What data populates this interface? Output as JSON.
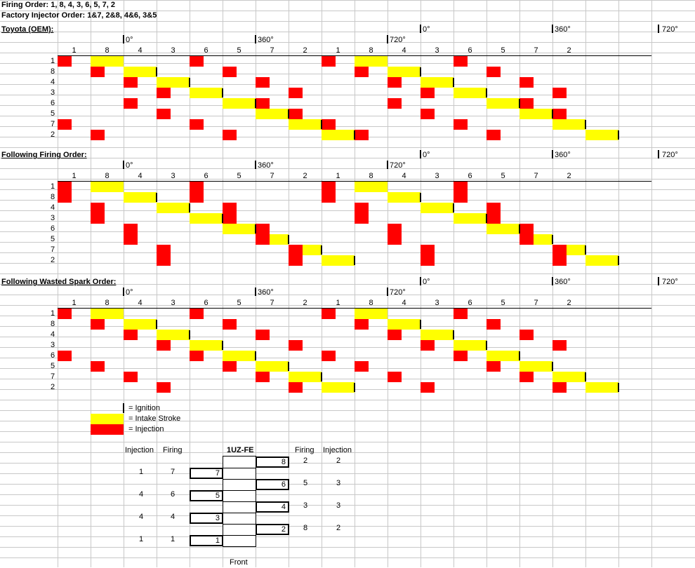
{
  "header": {
    "firing_order": "Firing Order: 1, 8, 4, 3, 6, 5, 7, 2",
    "injector_order": "Factory Injector Order: 1&7, 2&8, 4&6, 3&5"
  },
  "colors": {
    "ignition": "#000000",
    "intake": "#ffff00",
    "injection": "#ff0000",
    "grid": "#c8c8c8"
  },
  "degree_labels": {
    "zero": "0°",
    "d360": "360°",
    "d720": "720°"
  },
  "cylinder_header": [
    "1",
    "8",
    "4",
    "3",
    "6",
    "5",
    "7",
    "2",
    "1",
    "8",
    "4",
    "3",
    "6",
    "5",
    "7",
    "2"
  ],
  "row_labels": [
    "1",
    "8",
    "4",
    "3",
    "6",
    "5",
    "7",
    "2"
  ],
  "sections": [
    {
      "title": "Toyota (OEM):",
      "rows": [
        {
          "cyl": "1",
          "intake": [
            1,
            9
          ],
          "inj": [
            0,
            8,
            4,
            12
          ],
          "ign": []
        },
        {
          "cyl": "8",
          "intake": [
            2,
            10
          ],
          "inj": [
            1,
            9,
            5,
            13
          ],
          "ign": [
            3,
            11
          ]
        },
        {
          "cyl": "4",
          "intake": [
            3,
            11
          ],
          "inj": [
            2,
            10,
            6,
            14
          ],
          "ign": [
            4,
            12
          ]
        },
        {
          "cyl": "3",
          "intake": [
            4,
            12
          ],
          "inj": [
            3,
            11,
            7,
            15
          ],
          "ign": [
            5,
            13
          ]
        },
        {
          "cyl": "6",
          "intake": [
            5,
            13
          ],
          "inj": [
            2,
            10,
            6,
            14
          ],
          "ign": [
            6,
            14
          ]
        },
        {
          "cyl": "5",
          "intake": [
            6,
            14
          ],
          "inj": [
            3,
            11,
            7,
            15
          ],
          "ign": [
            7,
            15
          ]
        },
        {
          "cyl": "7",
          "intake": [
            7,
            15
          ],
          "inj": [
            0,
            8,
            4,
            12
          ],
          "ign": [
            8,
            16
          ]
        },
        {
          "cyl": "2",
          "intake": [
            8,
            16
          ],
          "inj": [
            1,
            9,
            5,
            13
          ],
          "ign": [
            9,
            17
          ]
        }
      ]
    },
    {
      "title": "Following Firing Order:",
      "rows": [
        {
          "cyl": "1",
          "intake": [
            1,
            9
          ],
          "inj": [
            0,
            4,
            8,
            12
          ],
          "ign": []
        },
        {
          "cyl": "8",
          "intake": [
            2,
            10
          ],
          "inj": [
            0,
            4,
            8,
            12
          ],
          "ign": [
            3,
            11
          ]
        },
        {
          "cyl": "4",
          "intake": [
            3,
            11
          ],
          "inj": [
            1,
            5,
            9,
            13
          ],
          "ign": [
            4,
            12
          ]
        },
        {
          "cyl": "3",
          "intake": [
            4,
            12
          ],
          "inj": [
            1,
            5,
            9,
            13
          ],
          "ign": [
            5,
            13
          ]
        },
        {
          "cyl": "6",
          "intake": [
            5,
            13
          ],
          "inj": [
            2,
            6,
            10,
            14
          ],
          "ign": [
            6,
            14
          ]
        },
        {
          "cyl": "5",
          "intake": [
            6,
            14
          ],
          "inj": [
            2,
            6,
            10,
            14
          ],
          "ign": [
            7,
            15
          ]
        },
        {
          "cyl": "7",
          "intake": [
            7,
            15
          ],
          "inj": [
            3,
            7,
            11,
            15
          ],
          "ign": [
            8,
            16
          ]
        },
        {
          "cyl": "2",
          "intake": [
            8,
            16
          ],
          "inj": [
            3,
            7,
            11,
            15
          ],
          "ign": [
            9,
            17
          ]
        }
      ]
    },
    {
      "title": "Following Wasted Spark Order:",
      "rows": [
        {
          "cyl": "1",
          "intake": [
            1,
            9
          ],
          "inj": [
            0,
            4,
            8,
            12
          ],
          "ign": []
        },
        {
          "cyl": "8",
          "intake": [
            2,
            10
          ],
          "inj": [
            1,
            5,
            9,
            13
          ],
          "ign": [
            3,
            11
          ]
        },
        {
          "cyl": "4",
          "intake": [
            3,
            11
          ],
          "inj": [
            2,
            6,
            10,
            14
          ],
          "ign": [
            4,
            12
          ]
        },
        {
          "cyl": "3",
          "intake": [
            4,
            12
          ],
          "inj": [
            3,
            7,
            11,
            15
          ],
          "ign": [
            5,
            13
          ]
        },
        {
          "cyl": "6",
          "intake": [
            5,
            13
          ],
          "inj": [
            0,
            4,
            8,
            12
          ],
          "ign": [
            6,
            14
          ]
        },
        {
          "cyl": "5",
          "intake": [
            6,
            14
          ],
          "inj": [
            1,
            5,
            9,
            13
          ],
          "ign": [
            7,
            15
          ]
        },
        {
          "cyl": "7",
          "intake": [
            7,
            15
          ],
          "inj": [
            2,
            6,
            10,
            14
          ],
          "ign": [
            8,
            16
          ]
        },
        {
          "cyl": "2",
          "intake": [
            8,
            16
          ],
          "inj": [
            3,
            7,
            11,
            15
          ],
          "ign": [
            9,
            17
          ]
        }
      ]
    }
  ],
  "legend": {
    "ignition": "= Ignition",
    "intake": "= Intake Stroke",
    "injection": "= Injection"
  },
  "engine": {
    "title": "1UZ-FE",
    "front": "Front",
    "left_headers": [
      "Injection",
      "Firing"
    ],
    "right_headers": [
      "Firing",
      "Injection"
    ],
    "left_rows": [
      {
        "injection": "1",
        "firing": "7",
        "box": "7"
      },
      {
        "injection": "4",
        "firing": "6",
        "box": "5"
      },
      {
        "injection": "4",
        "firing": "4",
        "box": "3"
      },
      {
        "injection": "1",
        "firing": "1",
        "box": "1"
      }
    ],
    "right_rows": [
      {
        "box": "8",
        "firing": "2",
        "injection": "2"
      },
      {
        "box": "6",
        "firing": "5",
        "injection": "3"
      },
      {
        "box": "4",
        "firing": "3",
        "injection": "3"
      },
      {
        "box": "2",
        "firing": "8",
        "injection": "2"
      }
    ]
  }
}
